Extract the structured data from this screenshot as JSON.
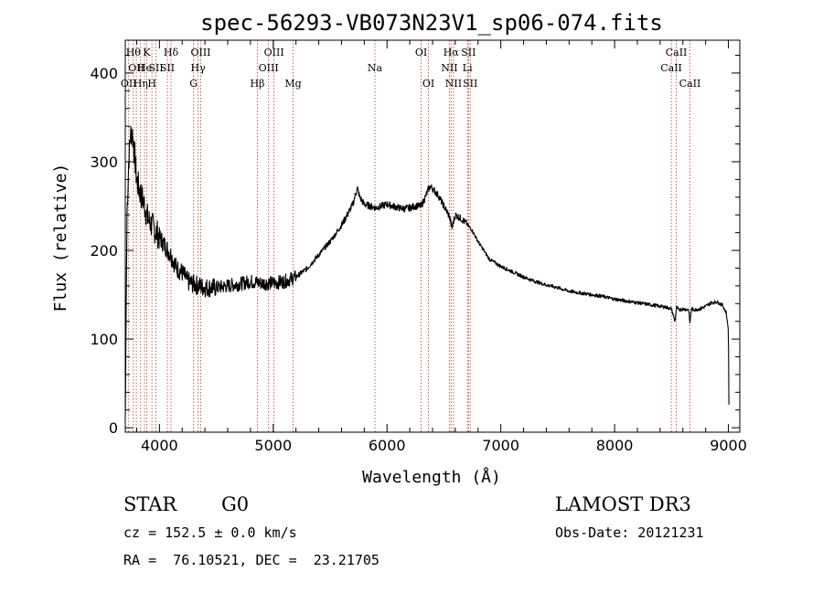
{
  "chart_data": {
    "type": "line",
    "title": "spec-56293-VB073N23V1_sp06-074.fits",
    "xlabel": "Wavelength (Å)",
    "ylabel": "Flux (relative)",
    "xlim": [
      3700,
      9100
    ],
    "ylim": [
      -5,
      437
    ],
    "xticks": [
      4000,
      5000,
      6000,
      7000,
      8000,
      9000
    ],
    "yticks": [
      0,
      100,
      200,
      300,
      400
    ],
    "series": [
      {
        "name": "spectrum",
        "x": [
          3700,
          3715,
          3730,
          3745,
          3760,
          3780,
          3800,
          3830,
          3860,
          3900,
          3950,
          4000,
          4050,
          4100,
          4150,
          4200,
          4250,
          4300,
          4350,
          4400,
          4500,
          4600,
          4700,
          4800,
          4900,
          5000,
          5100,
          5200,
          5300,
          5400,
          5500,
          5600,
          5650,
          5700,
          5720,
          5740,
          5760,
          5800,
          5850,
          5900,
          5950,
          6000,
          6050,
          6100,
          6150,
          6200,
          6250,
          6300,
          6330,
          6360,
          6380,
          6400,
          6450,
          6500,
          6550,
          6570,
          6600,
          6650,
          6700,
          6750,
          6800,
          6850,
          6900,
          7000,
          7100,
          7200,
          7300,
          7400,
          7500,
          7600,
          7700,
          7800,
          7900,
          8000,
          8100,
          8200,
          8300,
          8400,
          8450,
          8500,
          8530,
          8545,
          8560,
          8600,
          8650,
          8662,
          8675,
          8700,
          8750,
          8800,
          8850,
          8900,
          8950,
          8980,
          9000,
          9005
        ],
        "values": [
          10,
          240,
          300,
          330,
          335,
          310,
          280,
          265,
          255,
          235,
          225,
          215,
          205,
          195,
          180,
          175,
          165,
          162,
          160,
          158,
          158,
          160,
          162,
          165,
          163,
          163,
          165,
          170,
          180,
          195,
          210,
          228,
          240,
          252,
          262,
          270,
          260,
          252,
          250,
          248,
          250,
          252,
          250,
          248,
          247,
          248,
          250,
          250,
          258,
          268,
          272,
          270,
          262,
          250,
          238,
          225,
          240,
          236,
          230,
          222,
          210,
          200,
          190,
          182,
          176,
          170,
          165,
          161,
          158,
          154,
          152,
          150,
          148,
          145,
          143,
          141,
          139,
          137,
          136,
          134,
          120,
          136,
          133,
          134,
          133,
          118,
          134,
          133,
          134,
          137,
          141,
          142,
          138,
          130,
          110,
          5
        ]
      }
    ],
    "lines": [
      {
        "wave": 3730,
        "label": "OII",
        "row": 2,
        "anchor": "middle"
      },
      {
        "wave": 3771,
        "label": "Hθ",
        "row": 0,
        "anchor": "middle"
      },
      {
        "wave": 3797,
        "label": "OII",
        "row": 1,
        "anchor": "middle"
      },
      {
        "wave": 3835,
        "label": "Hη",
        "row": 2,
        "anchor": "middle"
      },
      {
        "wave": 3869,
        "label": "He",
        "row": 1,
        "anchor": "middle"
      },
      {
        "wave": 3889,
        "label": "K",
        "row": 0,
        "anchor": "middle"
      },
      {
        "wave": 3934,
        "label": "H",
        "row": 2,
        "anchor": "middle"
      },
      {
        "wave": 3970,
        "label": "SII",
        "row": 1,
        "anchor": "middle"
      },
      {
        "wave": 4070,
        "label": "SII",
        "row": 1,
        "anchor": "middle"
      },
      {
        "wave": 4102,
        "label": "Hδ",
        "row": 0,
        "anchor": "middle"
      },
      {
        "wave": 4300,
        "label": "G",
        "row": 2,
        "anchor": "middle"
      },
      {
        "wave": 4340,
        "label": "Hγ",
        "row": 1,
        "anchor": "middle"
      },
      {
        "wave": 4363,
        "label": "OIII",
        "row": 0,
        "anchor": "middle"
      },
      {
        "wave": 4861,
        "label": "Hβ",
        "row": 2,
        "anchor": "middle"
      },
      {
        "wave": 4959,
        "label": "OIII",
        "row": 1,
        "anchor": "middle"
      },
      {
        "wave": 5007,
        "label": "OIII",
        "row": 0,
        "anchor": "middle"
      },
      {
        "wave": 5175,
        "label": "Mg",
        "row": 2,
        "anchor": "middle"
      },
      {
        "wave": 5894,
        "label": "Na",
        "row": 1,
        "anchor": "middle"
      },
      {
        "wave": 6300,
        "label": "OI",
        "row": 0,
        "anchor": "middle"
      },
      {
        "wave": 6364,
        "label": "OI",
        "row": 2,
        "anchor": "middle"
      },
      {
        "wave": 6548,
        "label": "NII",
        "row": 1,
        "anchor": "middle"
      },
      {
        "wave": 6563,
        "label": "Hα",
        "row": 0,
        "anchor": "middle"
      },
      {
        "wave": 6584,
        "label": "NII",
        "row": 2,
        "anchor": "middle"
      },
      {
        "wave": 6707,
        "label": "Li",
        "row": 1,
        "anchor": "middle"
      },
      {
        "wave": 6716,
        "label": "SII",
        "row": 0,
        "anchor": "middle"
      },
      {
        "wave": 6731,
        "label": "SII",
        "row": 2,
        "anchor": "middle"
      },
      {
        "wave": 8498,
        "label": "CaII",
        "row": 1,
        "anchor": "middle"
      },
      {
        "wave": 8542,
        "label": "CaII",
        "row": 0,
        "anchor": "middle"
      },
      {
        "wave": 8662,
        "label": "CaII",
        "row": 2,
        "anchor": "middle"
      }
    ]
  },
  "info": {
    "class": "STAR",
    "subclass": "G0",
    "survey": "LAMOST DR3",
    "cz": "cz = 152.5 ± 0.0 km/s",
    "obs_date": "Obs-Date: 20121231",
    "coords": "RA =  76.10521, DEC =  23.21705"
  }
}
